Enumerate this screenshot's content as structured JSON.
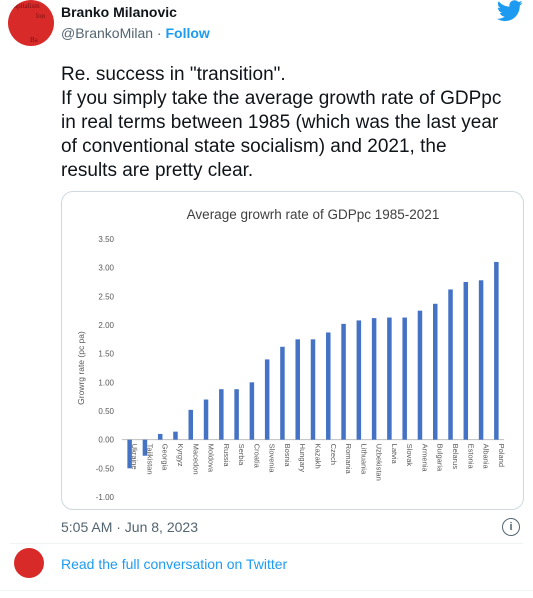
{
  "tweet": {
    "author_name": "Branko Milanovic",
    "handle": "@BrankoMilan",
    "separator": " · ",
    "follow_label": "Follow",
    "text_lines": [
      "Re. success in \"transition\".",
      "If you simply take the average growth rate of GDPpc",
      "in real terms between 1985 (which was the last year",
      "of conventional state socialism) and 2021, the",
      "results are pretty clear."
    ],
    "timestamp": "5:05 AM · Jun 8, 2023",
    "read_more": "Read the full conversation on Twitter",
    "avatar_text": [
      "apitalism",
      "lon",
      "Ba"
    ]
  },
  "colors": {
    "accent": "#1d9bf0",
    "bar": "#4472c4",
    "avatar": "#d92a2a"
  },
  "chart_data": {
    "type": "bar",
    "title": "Average growrh rate of GDPpc 1985-2021",
    "ylabel": "Growrg rate (pc pa)",
    "xlabel": "",
    "ylim": [
      -1.0,
      3.5
    ],
    "yticks": [
      "3.50",
      "3.00",
      "2.50",
      "2.00",
      "1.50",
      "1.00",
      "0.50",
      "0.00",
      "-0.50",
      "-1.00"
    ],
    "grid": false,
    "categories": [
      "Ukraine",
      "Tajikistan",
      "Georgia",
      "Kyrgyz",
      "Macedon",
      "Moldova",
      "Russia",
      "Serbia",
      "Croatia",
      "Slovenia",
      "Bosnia",
      "Hungary",
      "Kazakh",
      "Czech",
      "Romania",
      "Lithuania",
      "Uzbekistan",
      "Latvia",
      "Slovak",
      "Armenia",
      "Bulgaria",
      "Belarus",
      "Estonia",
      "Albania",
      "Poland"
    ],
    "values": [
      -0.5,
      -0.28,
      0.1,
      0.14,
      0.52,
      0.7,
      0.88,
      0.88,
      1.0,
      1.4,
      1.62,
      1.75,
      1.75,
      1.87,
      2.02,
      2.08,
      2.12,
      2.13,
      2.13,
      2.25,
      2.37,
      2.62,
      2.75,
      2.78,
      3.1
    ]
  }
}
